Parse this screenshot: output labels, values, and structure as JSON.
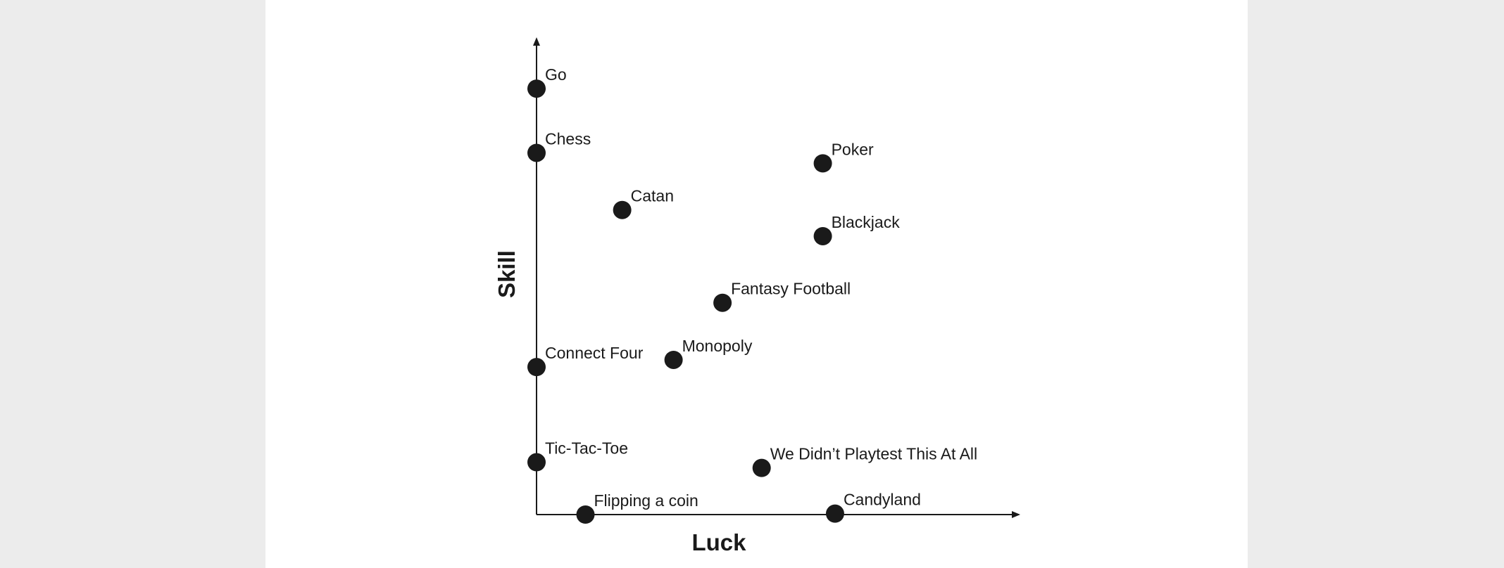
{
  "chart_data": {
    "type": "scatter",
    "title": "",
    "xlabel": "Luck",
    "ylabel": "Skill",
    "xlim": [
      0,
      10
    ],
    "ylim": [
      0,
      10
    ],
    "axis_ticks": false,
    "grid": false,
    "legend": "none",
    "point_color": "#1a1a1a",
    "axis_color": "#1a1a1a",
    "points": [
      {
        "label": "Go",
        "x": 0.0,
        "y": 8.95
      },
      {
        "label": "Chess",
        "x": 0.0,
        "y": 7.6
      },
      {
        "label": "Poker",
        "x": 5.85,
        "y": 7.38
      },
      {
        "label": "Catan",
        "x": 1.75,
        "y": 6.4
      },
      {
        "label": "Blackjack",
        "x": 5.85,
        "y": 5.85
      },
      {
        "label": "Fantasy Football",
        "x": 3.8,
        "y": 4.45
      },
      {
        "label": "Connect Four",
        "x": 0.0,
        "y": 3.1
      },
      {
        "label": "Monopoly",
        "x": 2.8,
        "y": 3.25
      },
      {
        "label": "Tic-Tac-Toe",
        "x": 0.0,
        "y": 1.1
      },
      {
        "label": "We Didn’t Playtest This At All",
        "x": 4.6,
        "y": 0.98
      },
      {
        "label": "Flipping a coin",
        "x": 1.0,
        "y": 0.0
      },
      {
        "label": "Candyland",
        "x": 6.1,
        "y": 0.02
      }
    ]
  }
}
